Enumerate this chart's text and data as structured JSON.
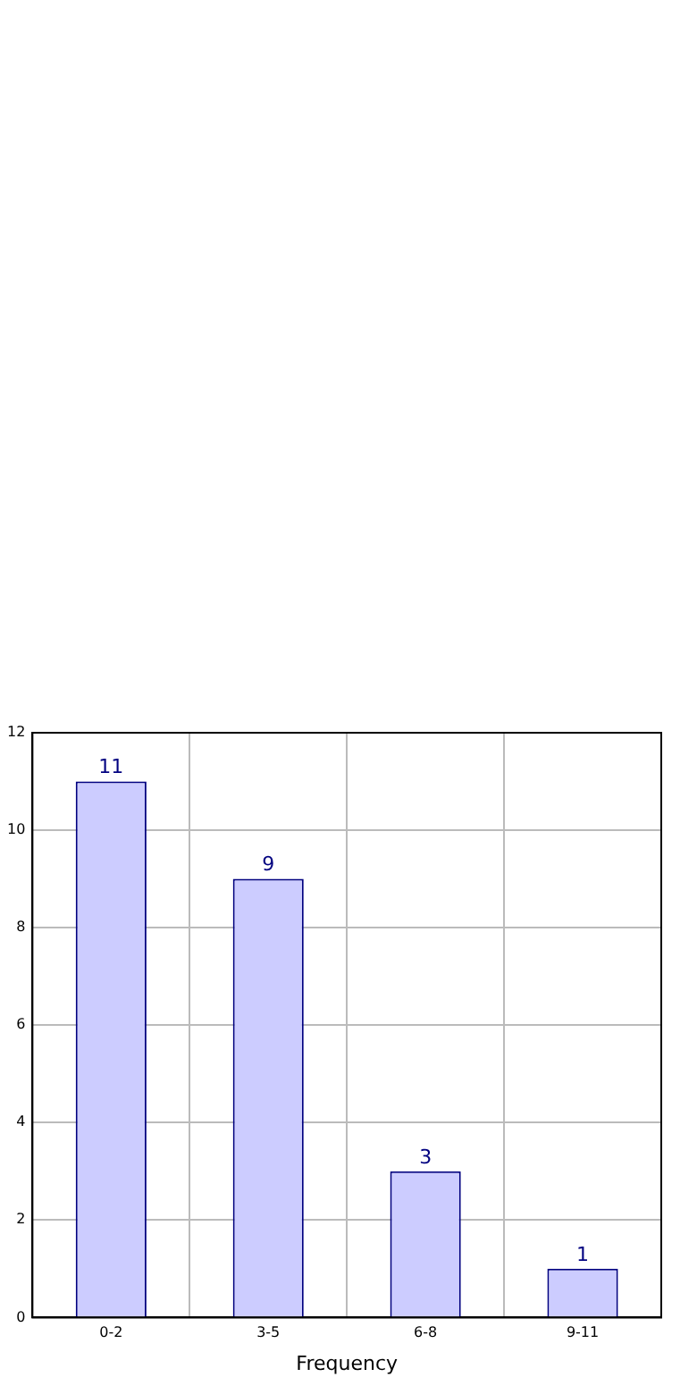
{
  "chart_data": {
    "type": "bar",
    "xlabel": "Frequency",
    "categories": [
      "0-2",
      "3-5",
      "6-8",
      "9-11"
    ],
    "values": [
      11,
      9,
      3,
      1
    ],
    "color": "#ccccff",
    "ylim": [
      0,
      12
    ],
    "yticks": [
      0,
      2,
      4,
      6,
      8,
      10,
      12
    ],
    "grid": true,
    "data_labels": true,
    "legend": false
  }
}
